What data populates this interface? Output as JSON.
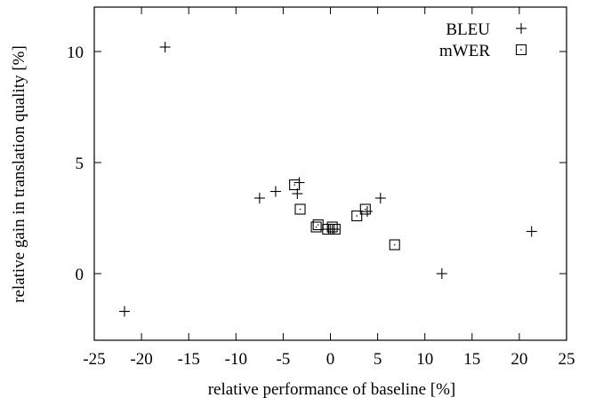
{
  "chart_data": {
    "type": "scatter",
    "title": "",
    "xlabel": "relative performance of baseline [%]",
    "ylabel": "relative gain in translation quality [%]",
    "xlim": [
      -25,
      25
    ],
    "ylim": [
      -3,
      12
    ],
    "xticks": [
      -25,
      -20,
      -15,
      -10,
      -5,
      0,
      5,
      10,
      15,
      20,
      25
    ],
    "yticks": [
      0,
      5,
      10
    ],
    "grid": false,
    "legend_position": "top-right",
    "series": [
      {
        "name": "BLEU",
        "marker": "plus",
        "points": [
          {
            "x": -17.5,
            "y": 10.2
          },
          {
            "x": -21.8,
            "y": -1.7
          },
          {
            "x": -7.5,
            "y": 3.4
          },
          {
            "x": -5.8,
            "y": 3.7
          },
          {
            "x": -3.3,
            "y": 4.1
          },
          {
            "x": -3.5,
            "y": 3.6
          },
          {
            "x": -0.2,
            "y": 2.0
          },
          {
            "x": 0.4,
            "y": 2.0
          },
          {
            "x": 3.9,
            "y": 2.8
          },
          {
            "x": 5.3,
            "y": 3.4
          },
          {
            "x": 11.8,
            "y": 0.0
          },
          {
            "x": 21.3,
            "y": 1.9
          }
        ]
      },
      {
        "name": "mWER",
        "marker": "square",
        "points": [
          {
            "x": -3.8,
            "y": 4.0
          },
          {
            "x": -3.2,
            "y": 2.9
          },
          {
            "x": -1.5,
            "y": 2.1
          },
          {
            "x": -1.3,
            "y": 2.2
          },
          {
            "x": -0.3,
            "y": 2.0
          },
          {
            "x": 0.2,
            "y": 2.1
          },
          {
            "x": 0.5,
            "y": 2.0
          },
          {
            "x": 2.8,
            "y": 2.6
          },
          {
            "x": 3.7,
            "y": 2.9
          },
          {
            "x": 6.8,
            "y": 1.3
          }
        ]
      }
    ]
  }
}
